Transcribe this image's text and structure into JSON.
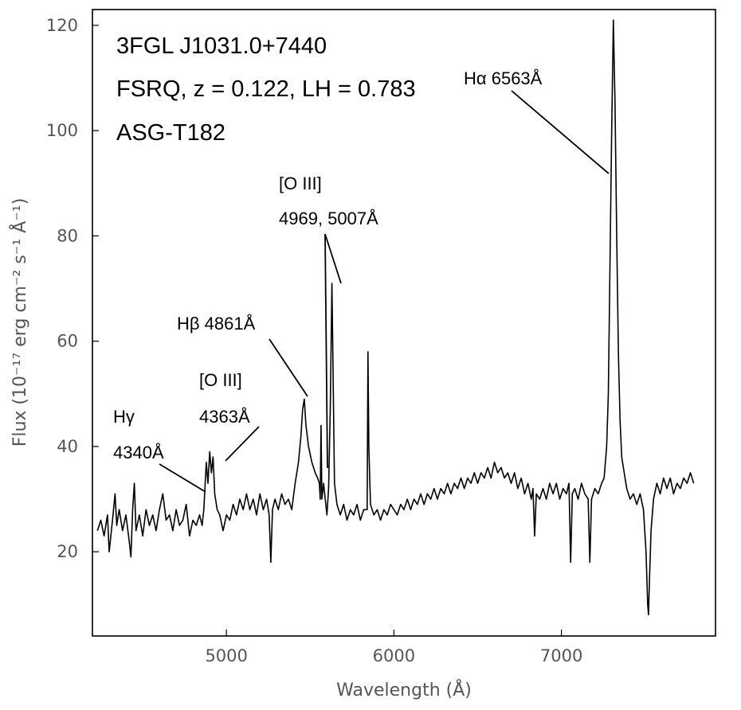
{
  "chart_data": {
    "type": "line",
    "title_lines": [
      "3FGL J1031.0+7440",
      "FSRQ, z = 0.122, LH = 0.783",
      "ASG-T182"
    ],
    "xlabel": "Wavelength (Å)",
    "ylabel": "Flux (10⁻¹⁷ erg cm⁻² s⁻¹ Å⁻¹)",
    "xlim": [
      4200,
      7920
    ],
    "ylim": [
      4,
      123
    ],
    "xticks": [
      5000,
      6000,
      7000
    ],
    "yticks": [
      20,
      40,
      60,
      80,
      100,
      120
    ],
    "grid": false,
    "series": [
      {
        "points": [
          [
            4230,
            24
          ],
          [
            4250,
            26
          ],
          [
            4270,
            23
          ],
          [
            4290,
            27
          ],
          [
            4300,
            20
          ],
          [
            4320,
            26
          ],
          [
            4335,
            31
          ],
          [
            4345,
            25
          ],
          [
            4360,
            28
          ],
          [
            4380,
            24
          ],
          [
            4400,
            27
          ],
          [
            4420,
            22
          ],
          [
            4430,
            19
          ],
          [
            4440,
            28
          ],
          [
            4450,
            33
          ],
          [
            4460,
            24
          ],
          [
            4480,
            27
          ],
          [
            4500,
            23
          ],
          [
            4520,
            28
          ],
          [
            4540,
            25
          ],
          [
            4560,
            27
          ],
          [
            4580,
            24
          ],
          [
            4600,
            28
          ],
          [
            4620,
            31
          ],
          [
            4640,
            26
          ],
          [
            4660,
            27
          ],
          [
            4680,
            24
          ],
          [
            4700,
            28
          ],
          [
            4720,
            25
          ],
          [
            4740,
            26
          ],
          [
            4760,
            29
          ],
          [
            4780,
            23
          ],
          [
            4800,
            26
          ],
          [
            4820,
            25
          ],
          [
            4840,
            27
          ],
          [
            4855,
            25
          ],
          [
            4865,
            28
          ],
          [
            4880,
            37
          ],
          [
            4890,
            33
          ],
          [
            4900,
            39
          ],
          [
            4910,
            35
          ],
          [
            4920,
            38
          ],
          [
            4930,
            31
          ],
          [
            4945,
            28
          ],
          [
            4960,
            27
          ],
          [
            4980,
            24
          ],
          [
            5000,
            27
          ],
          [
            5020,
            26
          ],
          [
            5040,
            29
          ],
          [
            5060,
            27
          ],
          [
            5080,
            30
          ],
          [
            5100,
            28
          ],
          [
            5120,
            31
          ],
          [
            5140,
            28
          ],
          [
            5160,
            30
          ],
          [
            5180,
            27
          ],
          [
            5200,
            31
          ],
          [
            5220,
            28
          ],
          [
            5240,
            30
          ],
          [
            5255,
            27
          ],
          [
            5265,
            18
          ],
          [
            5275,
            28
          ],
          [
            5290,
            30
          ],
          [
            5310,
            28
          ],
          [
            5330,
            31
          ],
          [
            5350,
            29
          ],
          [
            5370,
            30
          ],
          [
            5390,
            28
          ],
          [
            5410,
            33
          ],
          [
            5430,
            37
          ],
          [
            5445,
            42
          ],
          [
            5455,
            47
          ],
          [
            5465,
            49
          ],
          [
            5475,
            44
          ],
          [
            5490,
            40
          ],
          [
            5510,
            37
          ],
          [
            5530,
            35
          ],
          [
            5545,
            34
          ],
          [
            5555,
            33
          ],
          [
            5560,
            30
          ],
          [
            5565,
            44
          ],
          [
            5570,
            30
          ],
          [
            5580,
            33
          ],
          [
            5590,
            30
          ],
          [
            5600,
            27
          ],
          [
            5610,
            32
          ],
          [
            5620,
            47
          ],
          [
            5630,
            71
          ],
          [
            5635,
            58
          ],
          [
            5645,
            33
          ],
          [
            5660,
            29
          ],
          [
            5680,
            27
          ],
          [
            5700,
            29
          ],
          [
            5720,
            26
          ],
          [
            5740,
            28
          ],
          [
            5760,
            27
          ],
          [
            5780,
            29
          ],
          [
            5800,
            26
          ],
          [
            5820,
            28
          ],
          [
            5840,
            28
          ],
          [
            5845,
            58
          ],
          [
            5850,
            40
          ],
          [
            5860,
            29
          ],
          [
            5880,
            27
          ],
          [
            5900,
            28
          ],
          [
            5920,
            26
          ],
          [
            5940,
            28
          ],
          [
            5960,
            27
          ],
          [
            5980,
            29
          ],
          [
            6000,
            28
          ],
          [
            6020,
            27
          ],
          [
            6040,
            29
          ],
          [
            6060,
            28
          ],
          [
            6080,
            30
          ],
          [
            6100,
            28
          ],
          [
            6120,
            30
          ],
          [
            6140,
            29
          ],
          [
            6160,
            31
          ],
          [
            6180,
            29
          ],
          [
            6200,
            31
          ],
          [
            6220,
            30
          ],
          [
            6240,
            32
          ],
          [
            6260,
            30
          ],
          [
            6280,
            32
          ],
          [
            6300,
            31
          ],
          [
            6320,
            33
          ],
          [
            6340,
            31
          ],
          [
            6360,
            33
          ],
          [
            6380,
            32
          ],
          [
            6400,
            34
          ],
          [
            6420,
            32
          ],
          [
            6440,
            34
          ],
          [
            6460,
            33
          ],
          [
            6480,
            35
          ],
          [
            6500,
            33
          ],
          [
            6520,
            35
          ],
          [
            6540,
            34
          ],
          [
            6560,
            36
          ],
          [
            6580,
            34
          ],
          [
            6600,
            37
          ],
          [
            6620,
            35
          ],
          [
            6640,
            36
          ],
          [
            6660,
            34
          ],
          [
            6680,
            35
          ],
          [
            6700,
            33
          ],
          [
            6720,
            35
          ],
          [
            6740,
            32
          ],
          [
            6760,
            34
          ],
          [
            6780,
            31
          ],
          [
            6800,
            33
          ],
          [
            6820,
            30
          ],
          [
            6830,
            32
          ],
          [
            6840,
            23
          ],
          [
            6850,
            31
          ],
          [
            6870,
            30
          ],
          [
            6890,
            32
          ],
          [
            6910,
            30
          ],
          [
            6930,
            33
          ],
          [
            6950,
            31
          ],
          [
            6970,
            33
          ],
          [
            6990,
            30
          ],
          [
            7010,
            32
          ],
          [
            7030,
            31
          ],
          [
            7045,
            33
          ],
          [
            7055,
            18
          ],
          [
            7065,
            31
          ],
          [
            7080,
            32
          ],
          [
            7100,
            30
          ],
          [
            7120,
            33
          ],
          [
            7140,
            31
          ],
          [
            7160,
            30
          ],
          [
            7170,
            18
          ],
          [
            7180,
            30
          ],
          [
            7200,
            32
          ],
          [
            7220,
            31
          ],
          [
            7240,
            33
          ],
          [
            7255,
            34
          ],
          [
            7270,
            40
          ],
          [
            7280,
            50
          ],
          [
            7290,
            75
          ],
          [
            7300,
            100
          ],
          [
            7310,
            121
          ],
          [
            7320,
            105
          ],
          [
            7330,
            80
          ],
          [
            7340,
            58
          ],
          [
            7350,
            45
          ],
          [
            7360,
            38
          ],
          [
            7375,
            35
          ],
          [
            7390,
            32
          ],
          [
            7410,
            30
          ],
          [
            7430,
            31
          ],
          [
            7450,
            29
          ],
          [
            7470,
            31
          ],
          [
            7490,
            28
          ],
          [
            7505,
            20
          ],
          [
            7515,
            10
          ],
          [
            7520,
            8
          ],
          [
            7525,
            14
          ],
          [
            7535,
            24
          ],
          [
            7550,
            30
          ],
          [
            7570,
            33
          ],
          [
            7590,
            31
          ],
          [
            7610,
            34
          ],
          [
            7630,
            32
          ],
          [
            7650,
            34
          ],
          [
            7670,
            31
          ],
          [
            7690,
            33
          ],
          [
            7710,
            32
          ],
          [
            7730,
            34
          ],
          [
            7750,
            33
          ],
          [
            7770,
            35
          ],
          [
            7790,
            33
          ]
        ]
      }
    ],
    "annotations": [
      {
        "id": "halpha",
        "lines": [
          "Hα 6563Å"
        ],
        "point": [
          7270,
          93
        ]
      },
      {
        "id": "oiii-5007",
        "lines": [
          "[O III]",
          "4969, 5007Å"
        ],
        "point": [
          5560,
          75
        ]
      },
      {
        "id": "hbeta",
        "lines": [
          "Hβ 4861Å"
        ],
        "point": [
          5430,
          49
        ]
      },
      {
        "id": "oiii-4363",
        "lines": [
          "[O III]",
          "4363Å"
        ],
        "point": [
          4910,
          38
        ]
      },
      {
        "id": "hgamma",
        "lines": [
          "Hγ",
          "4340Å"
        ],
        "point": [
          4870,
          33
        ]
      }
    ]
  }
}
